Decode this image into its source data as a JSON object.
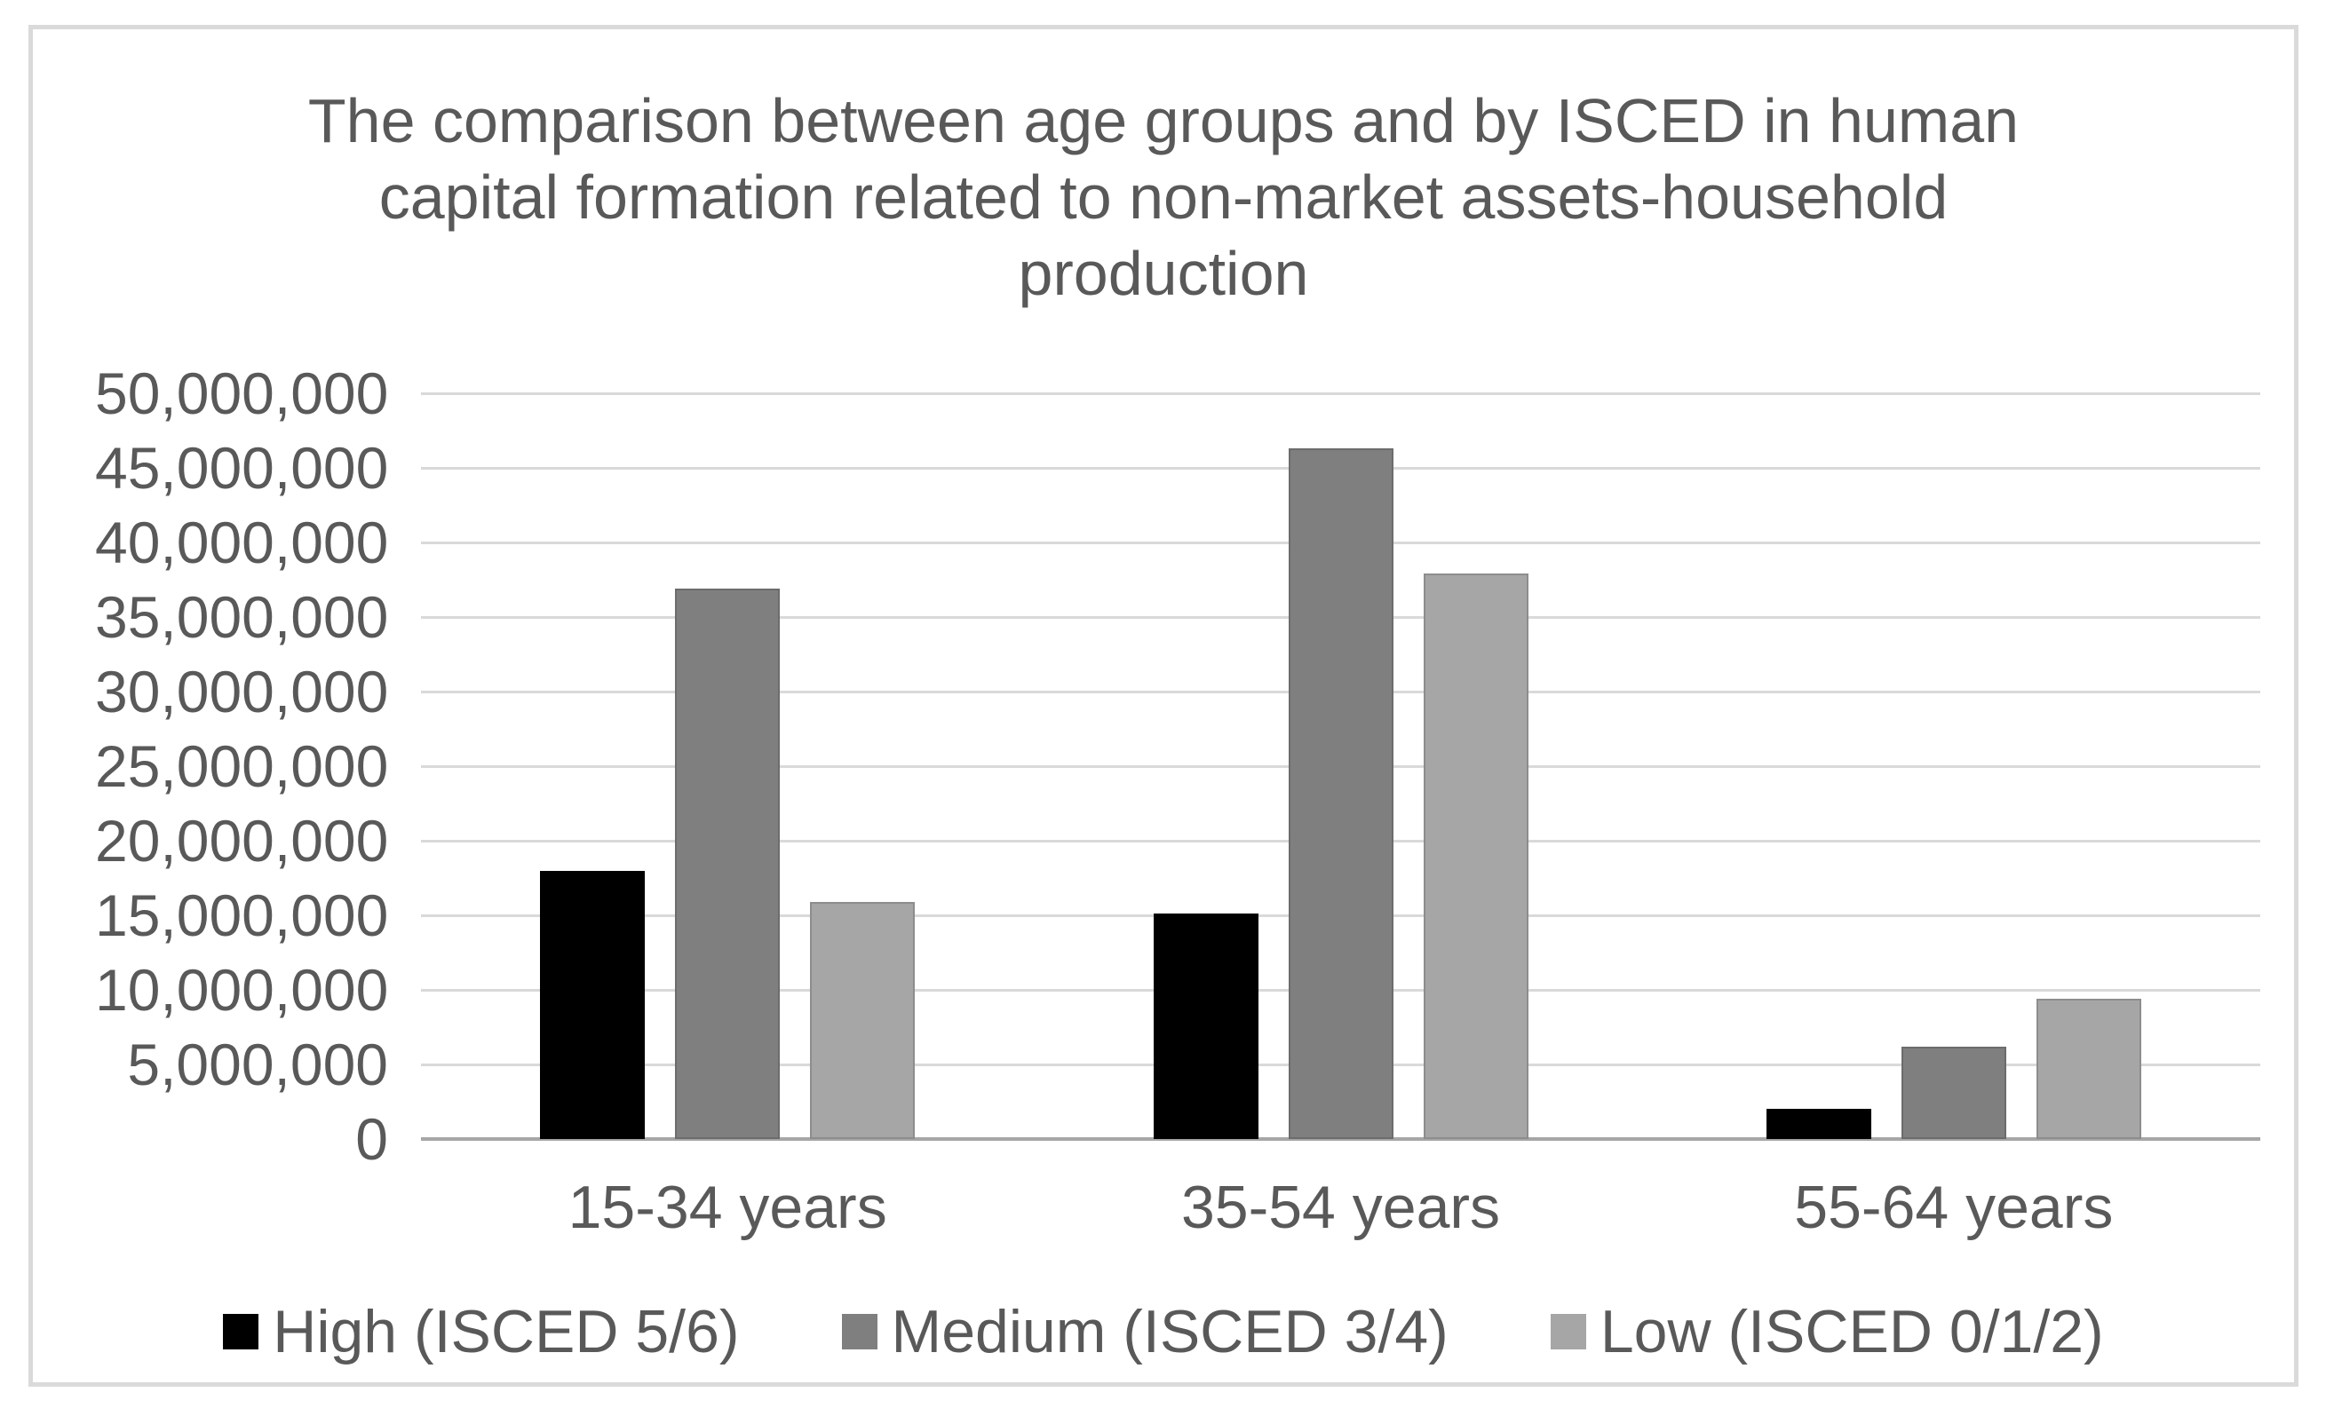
{
  "chart_data": {
    "type": "bar",
    "title": "The comparison between age groups and by ISCED in human capital formation related to non-market assets-household production",
    "title_lines": [
      "The comparison between age groups and by ISCED in human",
      "capital formation related to non-market assets-household",
      "production"
    ],
    "categories": [
      "15-34 years",
      "35-54 years",
      "55-64 years"
    ],
    "series": [
      {
        "name": "High (ISCED 5/6)",
        "color": "#000000",
        "values": [
          18000000,
          15100000,
          2000000
        ]
      },
      {
        "name": "Medium (ISCED 3/4)",
        "color": "#7f7f7f",
        "values": [
          36900000,
          46300000,
          6200000
        ]
      },
      {
        "name": "Low (ISCED 0/1/2)",
        "color": "#a6a6a6",
        "values": [
          15900000,
          37900000,
          9400000
        ]
      }
    ],
    "ylim": [
      0,
      50000000
    ],
    "ytick_step": 5000000,
    "ytick_labels": [
      "0",
      "5,000,000",
      "10,000,000",
      "15,000,000",
      "20,000,000",
      "25,000,000",
      "30,000,000",
      "35,000,000",
      "40,000,000",
      "45,000,000",
      "50,000,000"
    ],
    "xlabel": "",
    "ylabel": "",
    "grid": true,
    "legend_position": "bottom",
    "colors": {
      "gridline": "#d9d9d9",
      "axis_line": "#a6a6a6",
      "text": "#595959",
      "frame_border": "#dadada",
      "background": "#ffffff"
    }
  }
}
